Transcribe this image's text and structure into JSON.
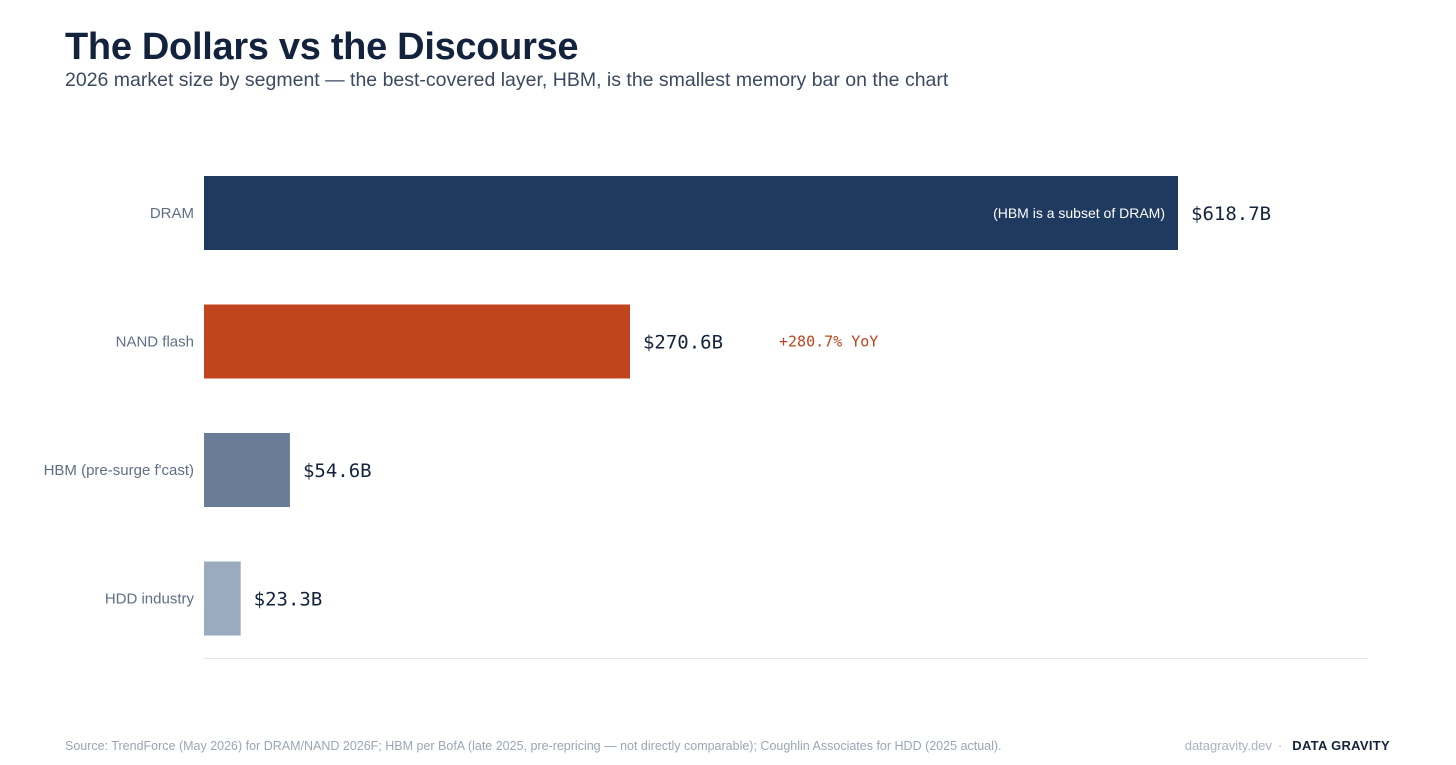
{
  "header": {
    "title": "The Dollars vs the Discourse",
    "subtitle": "2026 market size by segment — the best-covered layer, HBM, is the smallest memory bar on the chart"
  },
  "chart_data": {
    "type": "bar",
    "orientation": "horizontal",
    "categories": [
      "DRAM",
      "NAND flash",
      "HBM (pre-surge f'cast)",
      "HDD industry"
    ],
    "values": [
      618.7,
      270.6,
      54.6,
      23.3
    ],
    "value_labels": [
      "$618.7B",
      "$270.6B",
      "$54.6B",
      "$23.3B"
    ],
    "colors": [
      "#1f3a5f",
      "#c0441e",
      "#6b7d96",
      "#9aabbf"
    ],
    "annotations": {
      "dram_inside": "(HBM is a subset of DRAM)",
      "nand_yoy": "+280.7% YoY"
    },
    "xlim": [
      0,
      618.7
    ],
    "grid": false,
    "legend": "none",
    "title": "",
    "xlabel": "",
    "ylabel": ""
  },
  "footer": {
    "source": "Source: TrendForce (May 2026) for DRAM/NAND 2026F; HBM per BofA (late 2025, pre-repricing — not directly comparable); Coughlin Associates for HDD (2025 actual).",
    "site": "datagravity.dev",
    "separator": "·",
    "brand": "DATA GRAVITY"
  },
  "colors": {
    "title": "#14233d",
    "axis_line": "#e3e7ec",
    "accent_orange": "#c0441e"
  }
}
